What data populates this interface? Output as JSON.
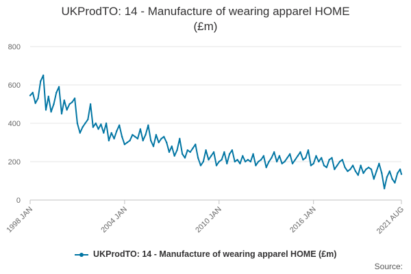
{
  "chart_data": {
    "type": "line",
    "title": "UKProdTO: 14 - Manufacture of wearing apparel HOME (£m)",
    "title_lines": [
      "UKProdTO: 14 - Manufacture of wearing apparel HOME",
      "(£m)"
    ],
    "xlabel": "",
    "ylabel": "",
    "ylim": [
      0,
      800
    ],
    "yticks": [
      "0",
      "200",
      "400",
      "600",
      "800"
    ],
    "ytick_values": [
      0,
      200,
      400,
      600,
      800
    ],
    "xticks": [
      "1998 JAN",
      "2004 JAN",
      "2010 JAN",
      "2016 JAN",
      "2021 AUG"
    ],
    "xtick_values": [
      "1998-01",
      "2004-01",
      "2010-01",
      "2016-01",
      "2021-08"
    ],
    "x_range": [
      "1998-01",
      "2021-08"
    ],
    "grid": "horizontal",
    "legend_position": "bottom",
    "series": [
      {
        "name": "UKProdTO: 14 - Manufacture of wearing apparel HOME (£m)",
        "color": "#0075a3",
        "x": [
          "1998-01",
          "1998-03",
          "1998-05",
          "1998-07",
          "1998-09",
          "1998-11",
          "1999-01",
          "1999-03",
          "1999-05",
          "1999-07",
          "1999-09",
          "1999-11",
          "2000-01",
          "2000-03",
          "2000-05",
          "2000-07",
          "2000-09",
          "2000-11",
          "2001-01",
          "2001-03",
          "2001-05",
          "2001-07",
          "2001-09",
          "2001-11",
          "2002-01",
          "2002-03",
          "2002-05",
          "2002-07",
          "2002-09",
          "2002-11",
          "2003-01",
          "2003-03",
          "2003-05",
          "2003-07",
          "2003-09",
          "2003-11",
          "2004-01",
          "2004-03",
          "2004-05",
          "2004-07",
          "2004-09",
          "2004-11",
          "2005-01",
          "2005-03",
          "2005-05",
          "2005-07",
          "2005-09",
          "2005-11",
          "2006-01",
          "2006-03",
          "2006-05",
          "2006-07",
          "2006-09",
          "2006-11",
          "2007-01",
          "2007-03",
          "2007-05",
          "2007-07",
          "2007-09",
          "2007-11",
          "2008-01",
          "2008-03",
          "2008-05",
          "2008-07",
          "2008-09",
          "2008-11",
          "2009-01",
          "2009-03",
          "2009-05",
          "2009-07",
          "2009-09",
          "2009-11",
          "2010-01",
          "2010-03",
          "2010-05",
          "2010-07",
          "2010-09",
          "2010-11",
          "2011-01",
          "2011-03",
          "2011-05",
          "2011-07",
          "2011-09",
          "2011-11",
          "2012-01",
          "2012-03",
          "2012-05",
          "2012-07",
          "2012-09",
          "2012-11",
          "2013-01",
          "2013-03",
          "2013-05",
          "2013-07",
          "2013-09",
          "2013-11",
          "2014-01",
          "2014-03",
          "2014-05",
          "2014-07",
          "2014-09",
          "2014-11",
          "2015-01",
          "2015-03",
          "2015-05",
          "2015-07",
          "2015-09",
          "2015-11",
          "2016-01",
          "2016-03",
          "2016-05",
          "2016-07",
          "2016-09",
          "2016-11",
          "2017-01",
          "2017-03",
          "2017-05",
          "2017-07",
          "2017-09",
          "2017-11",
          "2018-01",
          "2018-03",
          "2018-05",
          "2018-07",
          "2018-09",
          "2018-11",
          "2019-01",
          "2019-03",
          "2019-05",
          "2019-07",
          "2019-09",
          "2019-11",
          "2020-01",
          "2020-03",
          "2020-05",
          "2020-07",
          "2020-09",
          "2020-11",
          "2021-01",
          "2021-03",
          "2021-05",
          "2021-07",
          "2021-08"
        ],
        "values": [
          545,
          560,
          505,
          530,
          620,
          650,
          470,
          540,
          460,
          500,
          560,
          590,
          450,
          520,
          470,
          500,
          510,
          530,
          400,
          350,
          380,
          400,
          420,
          500,
          380,
          400,
          370,
          395,
          350,
          400,
          310,
          350,
          320,
          360,
          390,
          330,
          290,
          300,
          310,
          340,
          330,
          320,
          370,
          310,
          340,
          390,
          310,
          280,
          340,
          300,
          320,
          330,
          300,
          250,
          280,
          230,
          260,
          320,
          240,
          220,
          260,
          250,
          270,
          290,
          220,
          180,
          200,
          260,
          210,
          230,
          250,
          180,
          200,
          210,
          250,
          190,
          240,
          260,
          200,
          210,
          190,
          230,
          200,
          210,
          200,
          240,
          180,
          200,
          210,
          230,
          170,
          200,
          220,
          250,
          200,
          230,
          190,
          200,
          220,
          240,
          190,
          210,
          230,
          250,
          210,
          220,
          260,
          180,
          190,
          230,
          200,
          220,
          180,
          170,
          210,
          220,
          160,
          180,
          200,
          210,
          170,
          150,
          160,
          180,
          150,
          130,
          180,
          140,
          160,
          170,
          160,
          110,
          150,
          190,
          140,
          60,
          120,
          150,
          110,
          90,
          140,
          160,
          135
        ]
      }
    ]
  },
  "legend": {
    "label": "UKProdTO: 14 - Manufacture of wearing apparel HOME (£m)"
  },
  "footer": {
    "source_label": "Source:"
  }
}
